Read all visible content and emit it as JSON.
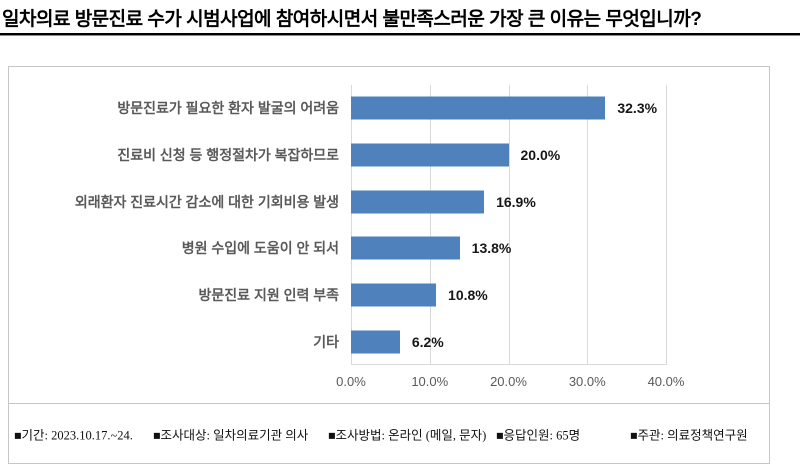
{
  "title": "일차의료 방문진료 수가 시범사업에 참여하시면서 불만족스러운 가장 큰 이유는 무엇입니까?",
  "chart_data": {
    "type": "bar",
    "orientation": "horizontal",
    "title": "",
    "categories": [
      "방문진료가 필요한 환자 발굴의 어려움",
      "진료비 신청 등 행정절차가 복잡하므로",
      "외래환자 진료시간 감소에 대한 기회비용 발생",
      "병원 수입에 도움이 안 되서",
      "방문진료 지원 인력 부족",
      "기타"
    ],
    "values": [
      32.3,
      20.0,
      16.9,
      13.8,
      10.8,
      6.2
    ],
    "data_labels": [
      "32.3%",
      "20.0%",
      "16.9%",
      "13.8%",
      "10.8%",
      "6.2%"
    ],
    "xlim": [
      0,
      40
    ],
    "x_ticks": [
      {
        "value": 0,
        "label": "0.0%"
      },
      {
        "value": 10,
        "label": "10.0%"
      },
      {
        "value": 20,
        "label": "20.0%"
      },
      {
        "value": 30,
        "label": "30.0%"
      },
      {
        "value": 40,
        "label": "40.0%"
      }
    ],
    "grid": "vertical",
    "legend": "none",
    "bar_color": "#4f81bd",
    "gridline_color": "#d9d9d9"
  },
  "footer": {
    "items": [
      "■기간: 2023.10.17.~24.",
      "■조사대상: 일차의료기관 의사",
      "■조사방법: 온라인 (메일, 문자)",
      "■응답인원: 65명",
      "■주관: 의료정책연구원"
    ]
  }
}
